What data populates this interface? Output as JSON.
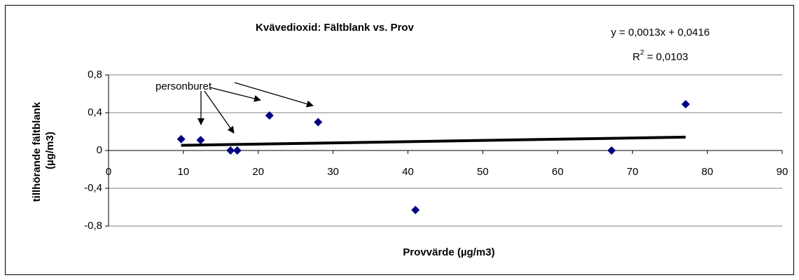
{
  "chart_data": {
    "type": "scatter",
    "title": "Kvävedioxid: Fältblank vs. Prov",
    "x_label": "Provvärde (µg/m3)",
    "y_label": [
      "tillhörande fältblank",
      "(µg/m3)"
    ],
    "equation": "y = 0,0013x + 0,0416",
    "r_squared": [
      "R",
      "2",
      " = 0,0103"
    ],
    "annotation": "personburet",
    "x": [
      9.7,
      12.3,
      16.3,
      17.2,
      21.5,
      28.0,
      41.0,
      67.2,
      77.1
    ],
    "values": [
      0.12,
      0.11,
      0,
      0,
      0.37,
      0.3,
      -0.63,
      0,
      0.49
    ],
    "color": "#000080",
    "trendline": {
      "slope": 0.0013,
      "intercept": 0.0416,
      "color": "#000000"
    },
    "xlim": [
      0,
      90
    ],
    "xticks": [
      0,
      10,
      20,
      30,
      40,
      50,
      60,
      70,
      80,
      90
    ],
    "ylim": [
      -0.8,
      0.8
    ],
    "yticks": [
      {
        "value": 0.8,
        "label": "0,8"
      },
      {
        "value": 0.4,
        "label": "0,4"
      },
      0,
      {
        "value": -0.4,
        "label": "-0,4"
      },
      {
        "value": -0.8,
        "label": "-0,8"
      }
    ],
    "grid": true
  }
}
